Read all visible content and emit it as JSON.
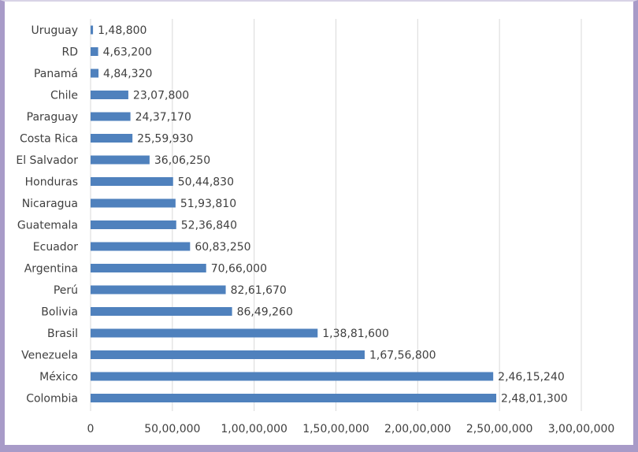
{
  "chart_data": {
    "type": "bar",
    "orientation": "horizontal",
    "title": "",
    "xlabel": "",
    "ylabel": "",
    "xlim": [
      0,
      30000000
    ],
    "x_tick_values": [
      0,
      5000000,
      10000000,
      15000000,
      20000000,
      25000000,
      30000000
    ],
    "x_tick_labels": [
      "0",
      "50,00,000",
      "1,00,00,000",
      "1,50,00,000",
      "2,00,00,000",
      "2,50,00,000",
      "3,00,00,000"
    ],
    "grid": "vertical",
    "bar_color": "#4f81bd",
    "categories": [
      "Uruguay",
      "RD",
      "Panamá",
      "Chile",
      "Paraguay",
      "Costa Rica",
      "El Salvador",
      "Honduras",
      "Nicaragua",
      "Guatemala",
      "Ecuador",
      "Argentina",
      "Perú",
      "Bolivia",
      "Brasil",
      "Venezuela",
      "México",
      "Colombia"
    ],
    "values": [
      148800,
      463200,
      484320,
      2307800,
      2437170,
      2559930,
      3606250,
      5044830,
      5193810,
      5236840,
      6083250,
      7066000,
      8261670,
      8649260,
      13881600,
      16756800,
      24615240,
      24801300
    ],
    "data_labels": [
      "1,48,800",
      "4,63,200",
      "4,84,320",
      "23,07,800",
      "24,37,170",
      "25,59,930",
      "36,06,250",
      "50,44,830",
      "51,93,810",
      "52,36,840",
      "60,83,250",
      "70,66,000",
      "82,61,670",
      "86,49,260",
      "1,38,81,600",
      "1,67,56,800",
      "2,46,15,240",
      "2,48,01,300"
    ]
  }
}
